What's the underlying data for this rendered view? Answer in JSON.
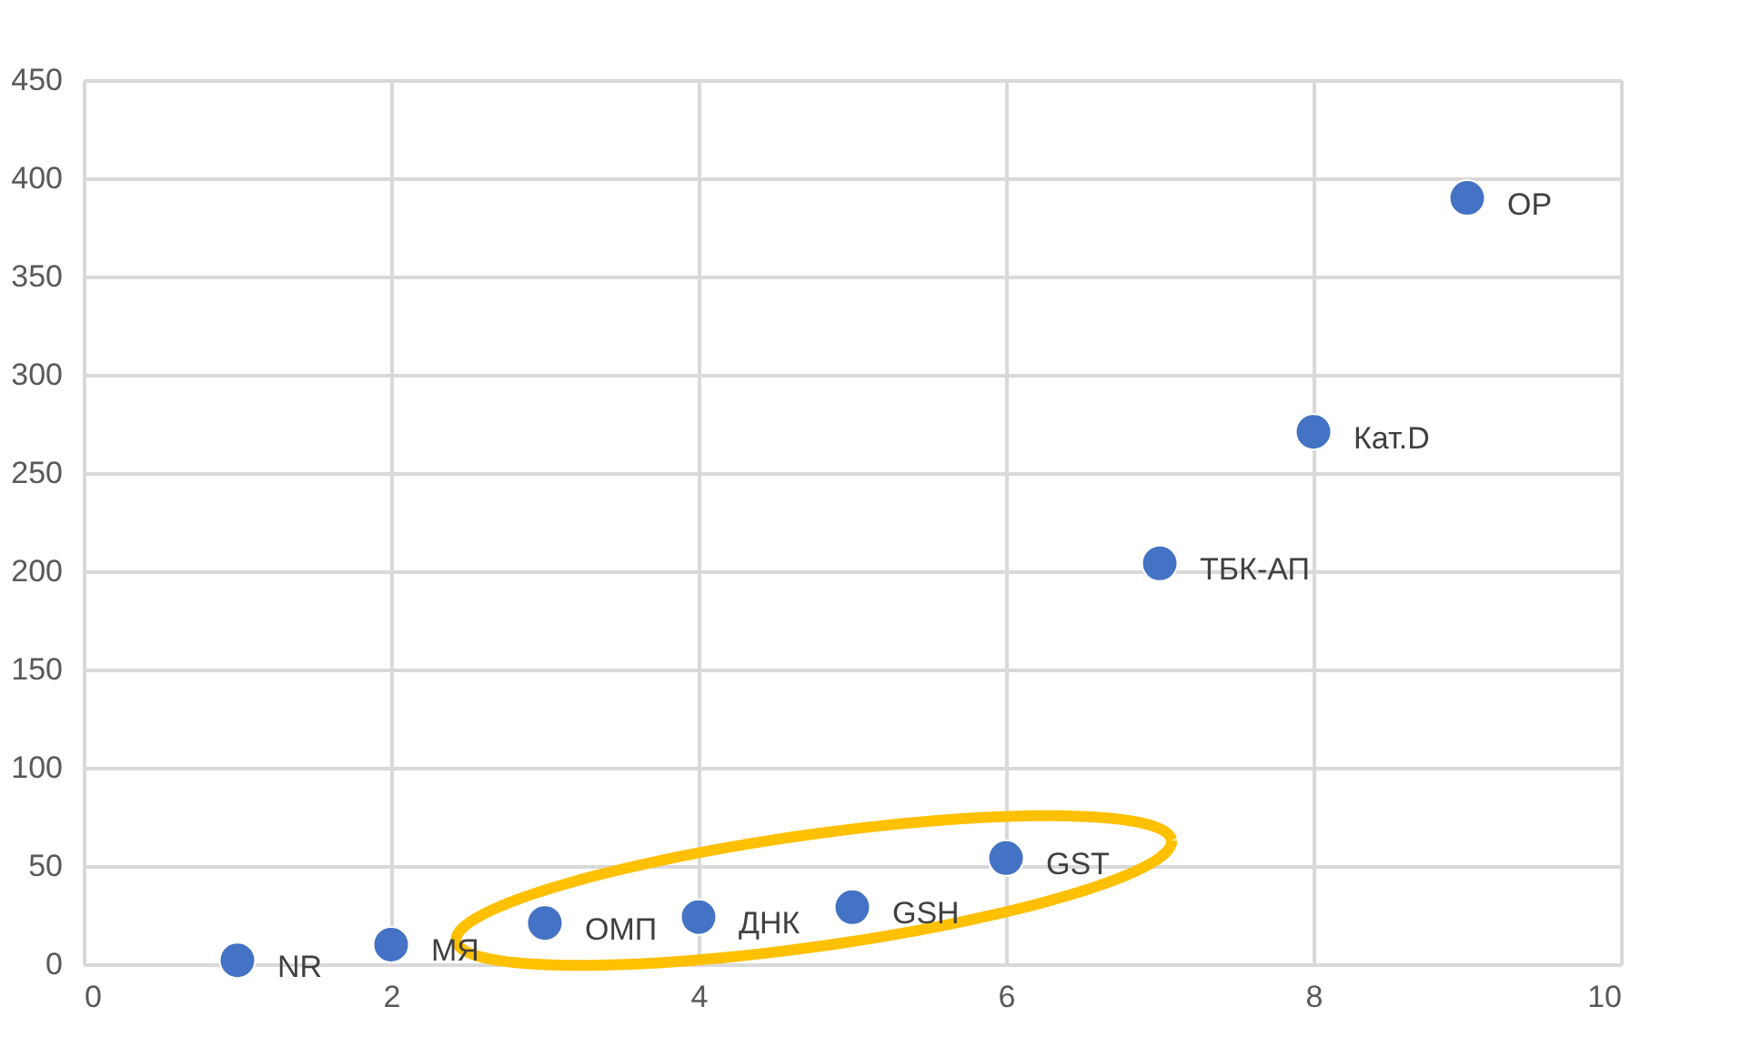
{
  "chart_data": {
    "type": "scatter",
    "x": [
      1,
      2,
      3,
      4,
      5,
      6,
      7,
      8,
      9
    ],
    "values": [
      2,
      10,
      21,
      24,
      29,
      54,
      204,
      271,
      390
    ],
    "color": "#4472c4",
    "marker": "circle",
    "xlim": [
      0,
      10
    ],
    "xticks": [
      0,
      2,
      4,
      6,
      8,
      10
    ],
    "ylim": [
      0,
      450
    ],
    "yticks": [
      0,
      50,
      100,
      150,
      200,
      250,
      300,
      350,
      400,
      450
    ],
    "grid": true,
    "annotations": [
      {
        "text": "NR",
        "x": 1,
        "y": 2
      },
      {
        "text": "МЯ",
        "x": 2,
        "y": 10
      },
      {
        "text": "ОМП",
        "x": 3,
        "y": 21
      },
      {
        "text": "ДНК",
        "x": 4,
        "y": 24
      },
      {
        "text": "GSH",
        "x": 5,
        "y": 29
      },
      {
        "text": "GST",
        "x": 6,
        "y": 54
      },
      {
        "text": "ТБК-АП",
        "x": 7,
        "y": 204
      },
      {
        "text": "Кат.D",
        "x": 8,
        "y": 271
      },
      {
        "text": "OP",
        "x": 9,
        "y": 390
      }
    ]
  }
}
